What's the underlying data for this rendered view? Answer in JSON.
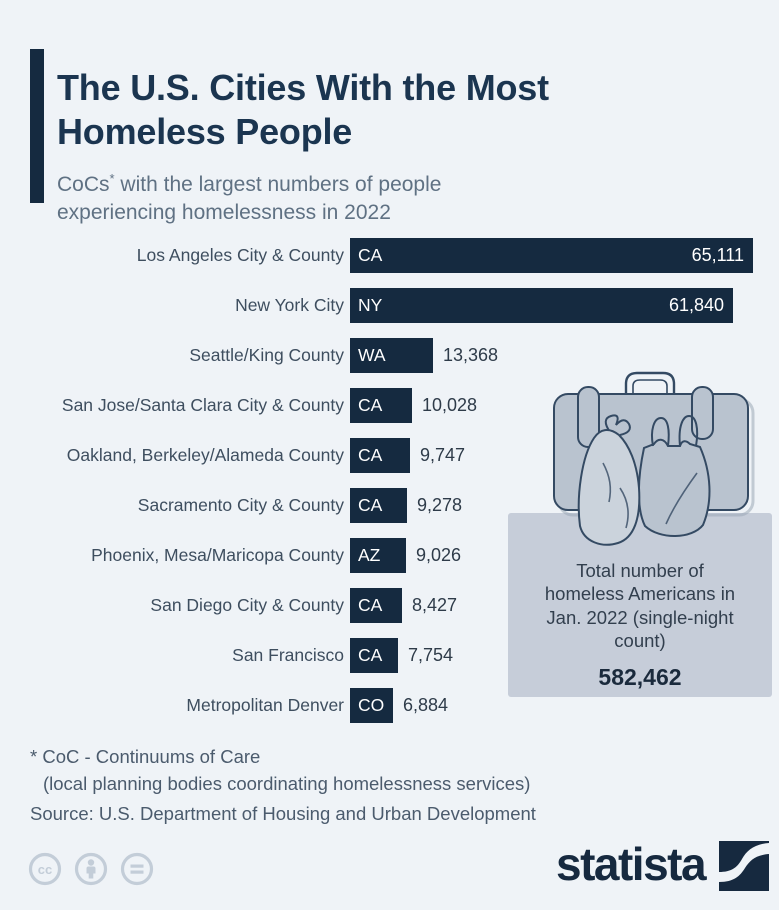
{
  "chart_data": {
    "type": "bar",
    "orientation": "horizontal",
    "title": "The U.S. Cities With the Most Homeless People",
    "subtitle": "CoCs* with the largest numbers of people experiencing homelessness in 2022",
    "xlim": [
      0,
      65111
    ],
    "grid": false,
    "legend": "none",
    "rows": [
      {
        "city": "Los Angeles City & County",
        "state": "CA",
        "value": 65111,
        "value_label": "65,111"
      },
      {
        "city": "New York City",
        "state": "NY",
        "value": 61840,
        "value_label": "61,840"
      },
      {
        "city": "Seattle/King County",
        "state": "WA",
        "value": 13368,
        "value_label": "13,368"
      },
      {
        "city": "San Jose/Santa Clara City & County",
        "state": "CA",
        "value": 10028,
        "value_label": "10,028"
      },
      {
        "city": "Oakland, Berkeley/Alameda County",
        "state": "CA",
        "value": 9747,
        "value_label": "9,747"
      },
      {
        "city": "Sacramento City & County",
        "state": "CA",
        "value": 9278,
        "value_label": "9,278"
      },
      {
        "city": "Phoenix, Mesa/Maricopa County",
        "state": "AZ",
        "value": 9026,
        "value_label": "9,026"
      },
      {
        "city": "San Diego City & County",
        "state": "CA",
        "value": 8427,
        "value_label": "8,427"
      },
      {
        "city": "San Francisco",
        "state": "CA",
        "value": 7754,
        "value_label": "7,754"
      },
      {
        "city": "Metropolitan Denver",
        "state": "CO",
        "value": 6884,
        "value_label": "6,884"
      }
    ]
  },
  "header": {
    "subtitle_prefix": "CoCs",
    "subtitle_sup": "*",
    "subtitle_rest": " with the largest numbers of people experiencing homelessness in 2022"
  },
  "info_box": {
    "caption": "Total number of homeless Americans in Jan. 2022 (single-night count)",
    "value": "582,462"
  },
  "footer": {
    "footnote_line1": "* CoC - Continuums of Care",
    "footnote_line2": "(local planning bodies coordinating homelessness services)",
    "source": "Source: U.S. Department of Housing and Urban Development"
  },
  "branding": {
    "logo_text": "statista",
    "license_icons": [
      "cc-icon",
      "attribution-icon",
      "nd-icon"
    ]
  },
  "colors": {
    "background": "#eff3f7",
    "bar_fill": "#152a40",
    "title_text": "#1b3550",
    "subtitle_text": "#5f7183",
    "label_text": "#3e4e5f",
    "value_text": "#2e3b49",
    "bar_value_text": "#ffffff",
    "infobox_bg": "#c6cdd9",
    "infobox_text": "#323f4e",
    "infobox_value_text": "#1a2a3c",
    "footer_text": "#4b5b6d",
    "brand_navy": "#16293f",
    "license_icon": "#c3cdd8",
    "illustration_fill": "#b9c3cf",
    "illustration_fill_light": "#cbd3dc",
    "illustration_stroke": "#344a63"
  }
}
